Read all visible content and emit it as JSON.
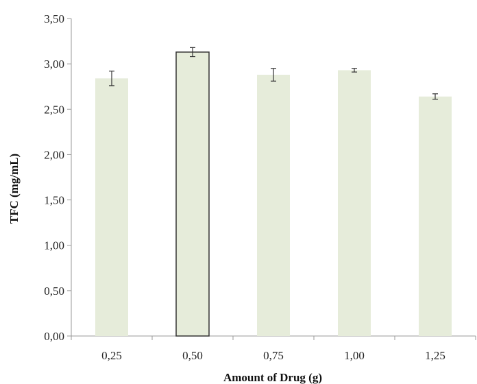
{
  "chart_data": {
    "type": "bar",
    "title": "",
    "xlabel": "Amount of Drug (g)",
    "ylabel": "TFC (mg/mL)",
    "categories": [
      "0,25",
      "0,50",
      "0,75",
      "1,00",
      "1,25"
    ],
    "values": [
      2.84,
      3.13,
      2.88,
      2.93,
      2.64
    ],
    "errors": [
      0.08,
      0.05,
      0.07,
      0.02,
      0.03
    ],
    "highlighted_index": 1,
    "ylim": [
      0,
      3.5
    ],
    "yticks": [
      0,
      0.5,
      1.0,
      1.5,
      2.0,
      2.5,
      3.0,
      3.5
    ],
    "ytick_labels": [
      "0,00",
      "0,50",
      "1,00",
      "1,50",
      "2,00",
      "2,50",
      "3,00",
      "3,50"
    ],
    "grid": false,
    "legend": "none",
    "colors": {
      "bar_fill": "#e6ecda",
      "bar_outline": "#333333",
      "error_bar": "#333333",
      "axis": "#999999"
    }
  }
}
